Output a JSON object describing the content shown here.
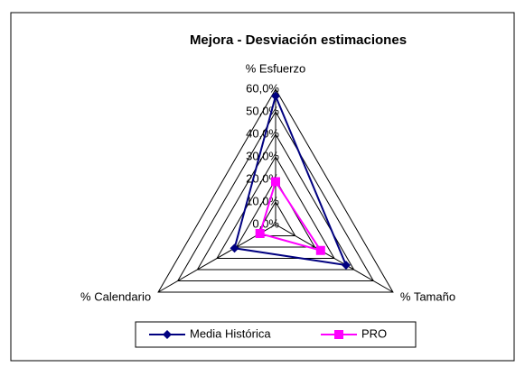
{
  "chart_data": {
    "type": "radar",
    "title": "Mejora - Desviación estimaciones",
    "categories": [
      "% Esfuerzo",
      "% Tamaño",
      "% Calendario"
    ],
    "series": [
      {
        "name": "Media Histórica",
        "color": "#000080",
        "values": [
          57,
          36,
          21
        ]
      },
      {
        "name": "PRO",
        "color": "#ff00ff",
        "values": [
          19,
          23,
          8
        ]
      }
    ],
    "ylim": [
      0,
      60
    ],
    "yticks": [
      {
        "value": 0,
        "label": "0,0%"
      },
      {
        "value": 10,
        "label": "10,0%"
      },
      {
        "value": 20,
        "label": "20,0%"
      },
      {
        "value": 30,
        "label": "30,0%"
      },
      {
        "value": 40,
        "label": "40,0%"
      },
      {
        "value": 50,
        "label": "50,0%"
      },
      {
        "value": 60,
        "label": "60,0%"
      }
    ],
    "grid": true
  }
}
